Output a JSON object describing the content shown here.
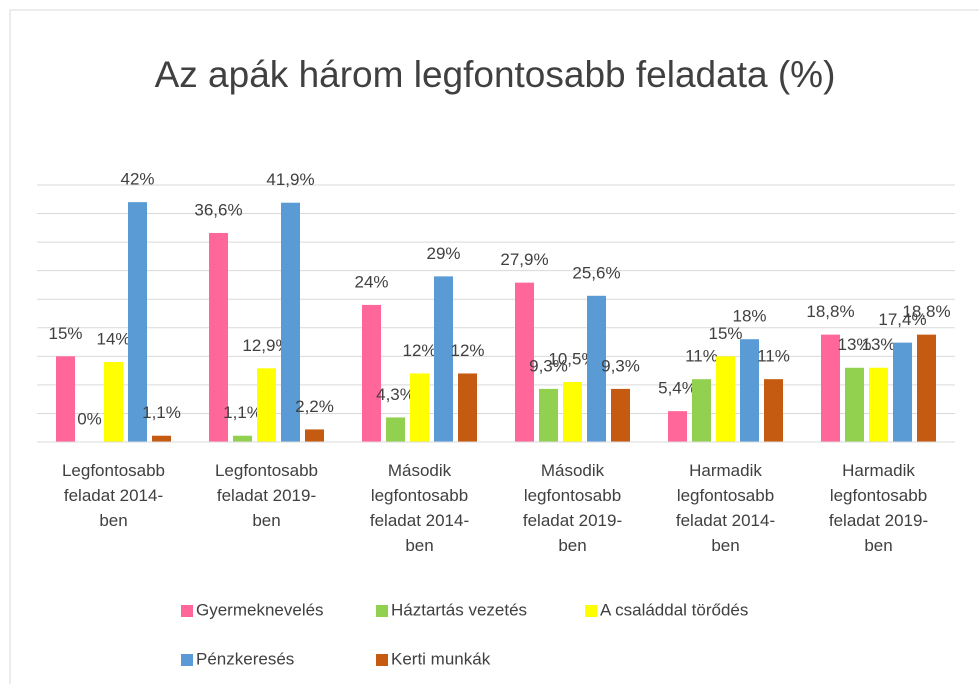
{
  "chart_data": {
    "type": "bar",
    "title": "Az apák három legfontosabb feladata (%)",
    "categories": [
      "Legfontosabb feladat 2014-ben",
      "Legfontosabb feladat 2019-ben",
      "Második legfontosabb feladat 2014-ben",
      "Második legfontosabb feladat 2019-ben",
      "Harmadik legfontosabb feladat 2014-ben",
      "Harmadik legfontosabb feladat 2019-ben"
    ],
    "series": [
      {
        "name": "Gyermeknevelés",
        "color": "#ff6699",
        "values": [
          15,
          36.6,
          24,
          27.9,
          5.4,
          18.8
        ],
        "value_labels": [
          "15%",
          "36,6%",
          "24%",
          "27,9%",
          "5,4%",
          "18,8%"
        ]
      },
      {
        "name": "Háztartás vezetés",
        "color": "#92d050",
        "values": [
          0,
          1.1,
          4.3,
          9.3,
          11,
          13
        ],
        "value_labels": [
          "0%",
          "1,1%",
          "4,3%",
          "9,3%",
          "11%",
          "13%"
        ]
      },
      {
        "name": "A családdal törődés",
        "color": "#ffff00",
        "values": [
          14,
          12.9,
          12,
          10.5,
          15,
          13
        ],
        "value_labels": [
          "14%",
          "12,9%",
          "12%",
          "10,5%",
          "15%",
          "13%"
        ]
      },
      {
        "name": "Pénzkeresés",
        "color": "#5b9bd5",
        "values": [
          42,
          41.9,
          29,
          25.6,
          18,
          17.4
        ],
        "value_labels": [
          "42%",
          "41,9%",
          "29%",
          "25,6%",
          "18%",
          "17,4%"
        ]
      },
      {
        "name": "Kerti munkák",
        "color": "#c55a11",
        "values": [
          1.1,
          2.2,
          12,
          9.3,
          11,
          18.8
        ],
        "value_labels": [
          "1,1%",
          "2,2%",
          "12%",
          "9,3%",
          "11%",
          "18,8%"
        ]
      }
    ],
    "ylim": [
      0,
      45
    ],
    "yticks": [
      0,
      5,
      10,
      15,
      20,
      25,
      30,
      35,
      40,
      45
    ],
    "grid": true,
    "legend": "bottom"
  }
}
